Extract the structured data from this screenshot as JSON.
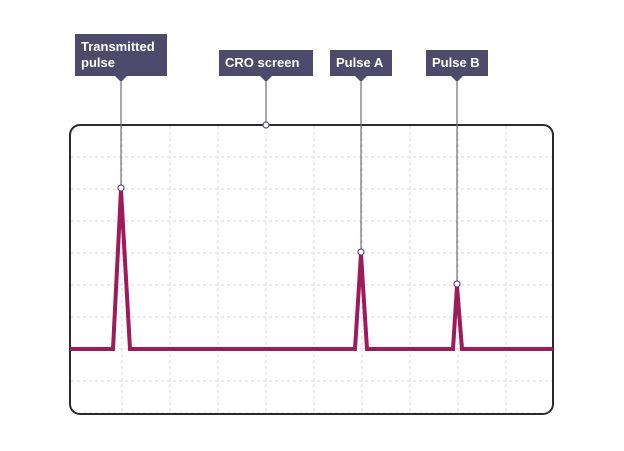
{
  "labels": {
    "transmitted": "Transmitted pulse",
    "screen": "CRO screen",
    "pulse_a": "Pulse A",
    "pulse_b": "Pulse B"
  },
  "colors": {
    "trace": "#9e1a5a",
    "label_bg": "#4d4a6b",
    "grid": "#d6d6e2",
    "frame": "#2b2b2b"
  }
}
